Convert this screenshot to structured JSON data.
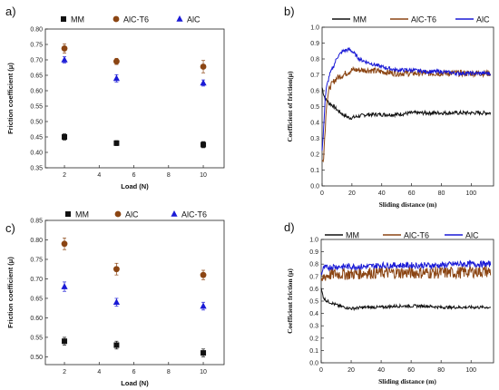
{
  "chart_data": [
    {
      "panel": "a)",
      "type": "scatter",
      "xlabel": "Load (N)",
      "ylabel": "Friction coefficient (μ)",
      "xlim": [
        0.9,
        11.2
      ],
      "ylim": [
        0.35,
        0.8
      ],
      "xticks": [
        2,
        4,
        6,
        8,
        10
      ],
      "yticks": [
        0.35,
        0.4,
        0.45,
        0.5,
        0.55,
        0.6,
        0.65,
        0.7,
        0.75,
        0.8
      ],
      "x": [
        2,
        5,
        10
      ],
      "series": [
        {
          "name": "MM",
          "values": [
            0.45,
            0.43,
            0.425
          ],
          "err": [
            0.01,
            0.008,
            0.01
          ],
          "color": "#111111",
          "marker": "square"
        },
        {
          "name": "AlC-T6",
          "values": [
            0.737,
            0.695,
            0.678
          ],
          "err": [
            0.015,
            0.01,
            0.02
          ],
          "color": "#8B4513",
          "marker": "circle"
        },
        {
          "name": "AlC",
          "values": [
            0.7,
            0.64,
            0.625
          ],
          "err": [
            0.01,
            0.012,
            0.01
          ],
          "color": "#1a1ad6",
          "marker": "triangle"
        }
      ],
      "legend_position": "top"
    },
    {
      "panel": "b)",
      "type": "line",
      "xlabel": "Sliding distance (m)",
      "ylabel": "Coefficient of friction(μ)",
      "xlim": [
        0,
        115
      ],
      "ylim": [
        0.0,
        1.0
      ],
      "xticks": [
        0,
        20,
        40,
        60,
        80,
        100
      ],
      "yticks": [
        0.0,
        0.1,
        0.2,
        0.3,
        0.4,
        0.5,
        0.6,
        0.7,
        0.8,
        0.9,
        1.0
      ],
      "x": [
        0,
        1,
        2,
        3,
        5,
        8,
        10,
        14,
        18,
        20,
        25,
        30,
        40,
        50,
        60,
        70,
        80,
        90,
        100,
        110,
        113
      ],
      "series": [
        {
          "name": "MM",
          "color": "#111111",
          "values": [
            0.62,
            0.58,
            0.55,
            0.54,
            0.52,
            0.5,
            0.48,
            0.45,
            0.43,
            0.43,
            0.44,
            0.45,
            0.45,
            0.45,
            0.46,
            0.46,
            0.46,
            0.46,
            0.46,
            0.46,
            0.46
          ],
          "noise": 0.012
        },
        {
          "name": "AlC-T6",
          "color": "#8B4513",
          "values": [
            0.15,
            0.18,
            0.35,
            0.52,
            0.62,
            0.66,
            0.68,
            0.7,
            0.72,
            0.73,
            0.73,
            0.73,
            0.72,
            0.71,
            0.71,
            0.71,
            0.71,
            0.71,
            0.71,
            0.71,
            0.71
          ],
          "noise": 0.02
        },
        {
          "name": "AlC",
          "color": "#1a1ad6",
          "values": [
            0.22,
            0.35,
            0.55,
            0.62,
            0.7,
            0.76,
            0.81,
            0.85,
            0.86,
            0.85,
            0.8,
            0.78,
            0.75,
            0.73,
            0.73,
            0.72,
            0.72,
            0.71,
            0.71,
            0.71,
            0.71
          ],
          "noise": 0.012
        }
      ],
      "legend_position": "top"
    },
    {
      "panel": "c)",
      "type": "scatter",
      "xlabel": "Load (N)",
      "ylabel": "Friction coefficient (μ)",
      "xlim": [
        0.9,
        11.2
      ],
      "ylim": [
        0.48,
        0.85
      ],
      "xticks": [
        2,
        4,
        6,
        8,
        10
      ],
      "yticks": [
        0.5,
        0.55,
        0.6,
        0.65,
        0.7,
        0.75,
        0.8,
        0.85
      ],
      "x": [
        2,
        5,
        10
      ],
      "series": [
        {
          "name": "MM",
          "values": [
            0.54,
            0.53,
            0.51
          ],
          "err": [
            0.01,
            0.01,
            0.01
          ],
          "color": "#111111",
          "marker": "square"
        },
        {
          "name": "AlC",
          "values": [
            0.79,
            0.725,
            0.71
          ],
          "err": [
            0.015,
            0.015,
            0.012
          ],
          "color": "#8B4513",
          "marker": "circle"
        },
        {
          "name": "AlC-T6",
          "values": [
            0.68,
            0.64,
            0.63
          ],
          "err": [
            0.012,
            0.01,
            0.01
          ],
          "color": "#1a1ad6",
          "marker": "triangle"
        }
      ],
      "legend_position": "top"
    },
    {
      "panel": "d)",
      "type": "line",
      "xlabel": "Sliding distance (m)",
      "ylabel": "Coefficient friction (μ)",
      "xlim": [
        0,
        115
      ],
      "ylim": [
        0.0,
        1.0
      ],
      "xticks": [
        0,
        20,
        40,
        60,
        80,
        100
      ],
      "yticks": [
        0.0,
        0.1,
        0.2,
        0.3,
        0.4,
        0.5,
        0.6,
        0.7,
        0.8,
        0.9,
        1.0
      ],
      "x": [
        0,
        1,
        2,
        4,
        8,
        12,
        16,
        20,
        30,
        40,
        50,
        60,
        70,
        80,
        90,
        100,
        110,
        113
      ],
      "series": [
        {
          "name": "MM",
          "color": "#111111",
          "values": [
            0.6,
            0.55,
            0.52,
            0.5,
            0.48,
            0.46,
            0.45,
            0.44,
            0.45,
            0.45,
            0.46,
            0.46,
            0.46,
            0.45,
            0.45,
            0.45,
            0.45,
            0.45
          ],
          "noise": 0.012
        },
        {
          "name": "AlC-T6",
          "color": "#8B4513",
          "values": [
            0.62,
            0.68,
            0.7,
            0.71,
            0.72,
            0.72,
            0.72,
            0.72,
            0.73,
            0.73,
            0.73,
            0.73,
            0.73,
            0.73,
            0.73,
            0.74,
            0.74,
            0.74
          ],
          "noise": 0.05
        },
        {
          "name": "AlC",
          "color": "#1a1ad6",
          "values": [
            0.72,
            0.75,
            0.77,
            0.77,
            0.78,
            0.78,
            0.78,
            0.78,
            0.78,
            0.79,
            0.79,
            0.79,
            0.79,
            0.79,
            0.8,
            0.8,
            0.8,
            0.8
          ],
          "noise": 0.025
        }
      ],
      "legend_position": "top"
    }
  ]
}
